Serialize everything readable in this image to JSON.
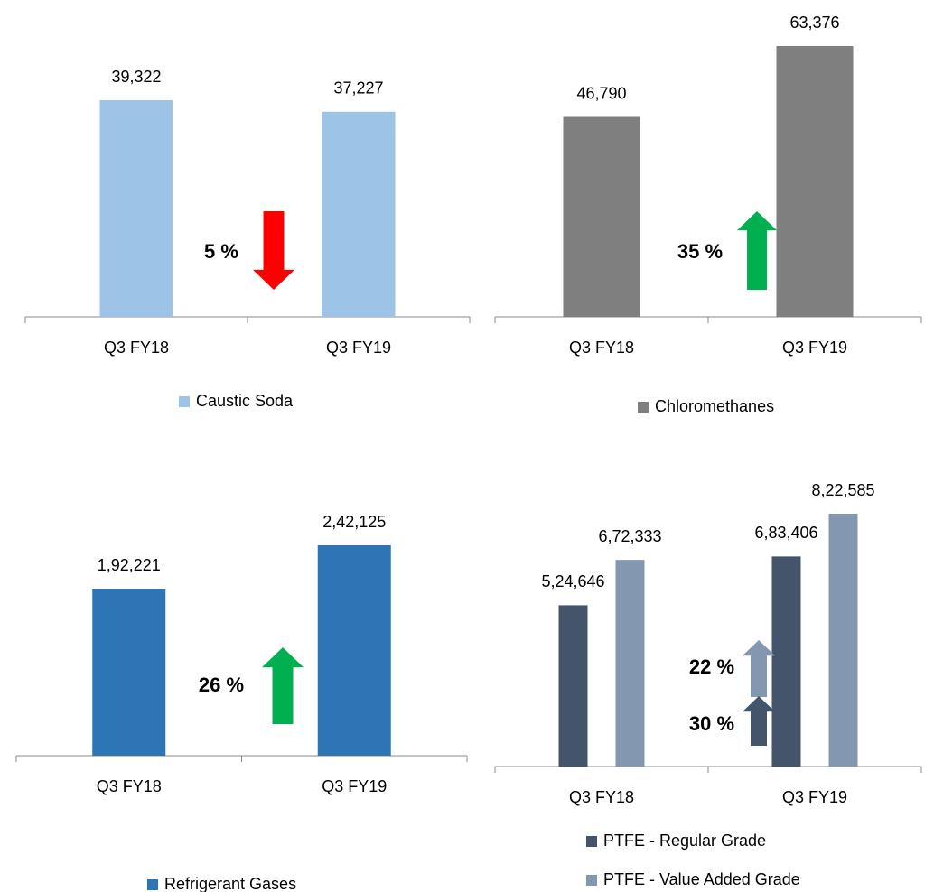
{
  "chart_data": [
    {
      "type": "bar",
      "categories": [
        "Q3 FY18",
        "Q3 FY19"
      ],
      "series": [
        {
          "name": "Caustic Soda",
          "color": "#9dc3e6",
          "values": [
            39322,
            37227
          ],
          "value_labels": [
            "39,322",
            "37,227"
          ]
        }
      ],
      "annotations": [
        {
          "text": "5 %",
          "color": "#ff0000",
          "direction": "down"
        }
      ]
    },
    {
      "type": "bar",
      "categories": [
        "Q3 FY18",
        "Q3 FY19"
      ],
      "series": [
        {
          "name": "Chloromethanes",
          "color": "#7f7f7f",
          "values": [
            46790,
            63376
          ],
          "value_labels": [
            "46,790",
            "63,376"
          ]
        }
      ],
      "annotations": [
        {
          "text": "35 %",
          "color": "#00b050",
          "direction": "up"
        }
      ]
    },
    {
      "type": "bar",
      "categories": [
        "Q3 FY18",
        "Q3 FY19"
      ],
      "series": [
        {
          "name": "Refrigerant Gases",
          "color": "#2e75b6",
          "values": [
            192221,
            242125
          ],
          "value_labels": [
            "1,92,221",
            "2,42,125"
          ]
        }
      ],
      "annotations": [
        {
          "text": "26 %",
          "color": "#00b050",
          "direction": "up"
        }
      ]
    },
    {
      "type": "bar",
      "categories": [
        "Q3 FY18",
        "Q3 FY19"
      ],
      "series": [
        {
          "name": "PTFE - Regular Grade",
          "color": "#44546a",
          "values": [
            524646,
            683406
          ],
          "value_labels": [
            "5,24,646",
            "6,83,406"
          ]
        },
        {
          "name": "PTFE - Value Added Grade",
          "color": "#8497b0",
          "values": [
            672333,
            822585
          ],
          "value_labels": [
            "6,72,333",
            "8,22,585"
          ]
        }
      ],
      "annotations": [
        {
          "text": "22 %",
          "color": "#8497b0",
          "direction": "up"
        },
        {
          "text": "30 %",
          "color": "#44546a",
          "direction": "up"
        }
      ]
    }
  ]
}
